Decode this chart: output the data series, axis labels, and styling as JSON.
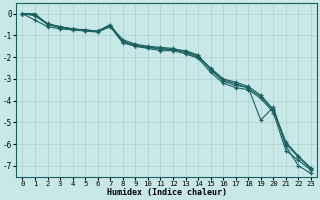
{
  "xlabel": "Humidex (Indice chaleur)",
  "ylabel": "",
  "bg_color": "#c8e8e8",
  "grid_color": "#b0d0d0",
  "line_color": "#1a6060",
  "xlim": [
    -0.5,
    23.5
  ],
  "ylim": [
    -7.5,
    0.5
  ],
  "xticks": [
    0,
    1,
    2,
    3,
    4,
    5,
    6,
    7,
    8,
    9,
    10,
    11,
    12,
    13,
    14,
    15,
    16,
    17,
    18,
    19,
    20,
    21,
    22,
    23
  ],
  "yticks": [
    0,
    -1,
    -2,
    -3,
    -4,
    -5,
    -6,
    -7
  ],
  "series": [
    [
      0.0,
      0.0,
      -0.5,
      -0.6,
      -0.7,
      -0.75,
      -0.8,
      -0.5,
      -1.3,
      -1.5,
      -1.55,
      -1.6,
      -1.65,
      -1.7,
      -1.9,
      -2.6,
      -3.1,
      -3.3,
      -3.4,
      -4.9,
      -4.3,
      -6.1,
      -7.0,
      -7.35
    ],
    [
      0.0,
      -0.3,
      -0.6,
      -0.7,
      -0.75,
      -0.8,
      -0.85,
      -0.6,
      -1.35,
      -1.5,
      -1.6,
      -1.7,
      -1.7,
      -1.85,
      -2.05,
      -2.7,
      -3.2,
      -3.4,
      -3.5,
      -3.9,
      -4.55,
      -6.3,
      -6.75,
      -7.2
    ],
    [
      0.0,
      -0.05,
      -0.45,
      -0.6,
      -0.7,
      -0.75,
      -0.8,
      -0.55,
      -1.2,
      -1.4,
      -1.5,
      -1.55,
      -1.6,
      -1.75,
      -1.95,
      -2.5,
      -3.0,
      -3.15,
      -3.35,
      -3.75,
      -4.4,
      -5.9,
      -6.55,
      -7.1
    ],
    [
      0.0,
      -0.1,
      -0.5,
      -0.65,
      -0.72,
      -0.78,
      -0.82,
      -0.57,
      -1.25,
      -1.45,
      -1.55,
      -1.62,
      -1.65,
      -1.8,
      -2.0,
      -2.55,
      -3.05,
      -3.22,
      -3.42,
      -3.82,
      -4.45,
      -6.0,
      -6.6,
      -7.15
    ]
  ]
}
